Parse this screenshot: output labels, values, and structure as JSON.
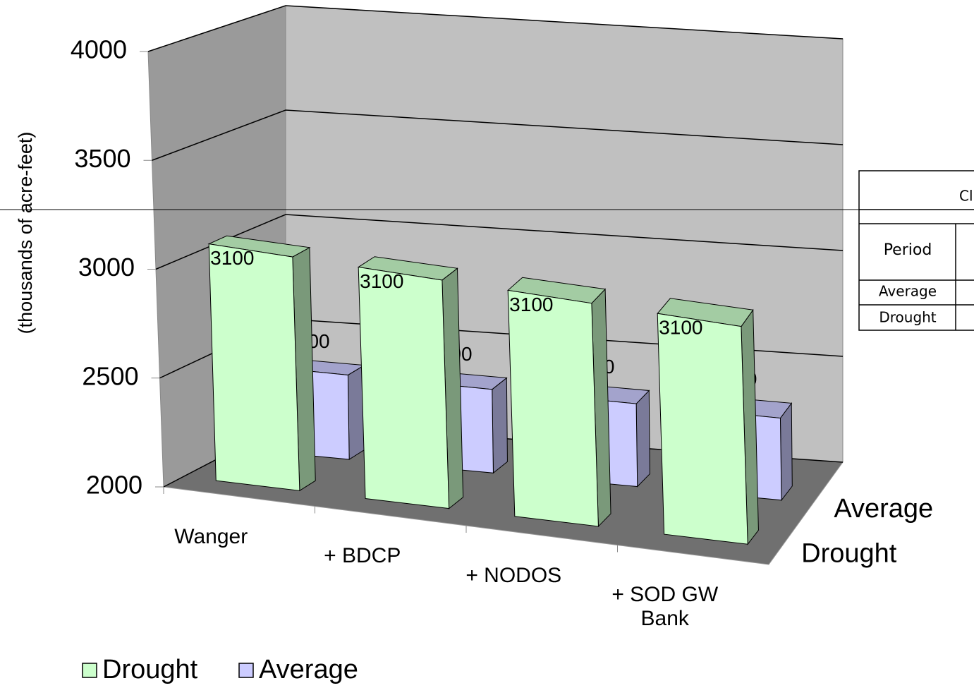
{
  "chart_data": {
    "type": "bar3d",
    "y_axis_label": "(thousands of acre-feet)",
    "categories": [
      "Wanger",
      "+ BDCP",
      "+ NODOS",
      "+ SOD GW Bank"
    ],
    "series": [
      {
        "name": "Drought",
        "color": "#ccffcc",
        "values": [
          3100,
          3100,
          3100,
          3100
        ]
      },
      {
        "name": "Average",
        "color": "#ccccff",
        "values": [
          2400,
          2400,
          2400,
          2400
        ]
      }
    ],
    "ylim": [
      2000,
      4000
    ],
    "yticks": [
      2000,
      2500,
      3000,
      3500,
      4000
    ],
    "grid": true,
    "legend": "bottom-left"
  },
  "overlay_table": {
    "title": "Cl",
    "rows": [
      "Period",
      "Average",
      "Drought"
    ]
  }
}
